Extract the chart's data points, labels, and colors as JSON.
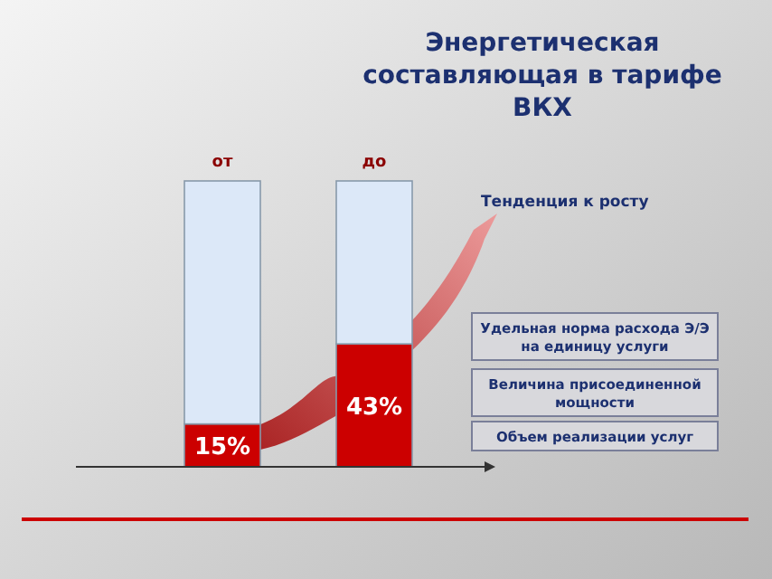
{
  "chart_data": {
    "type": "bar",
    "title": "Энергетическая составляющая в тарифе ВКХ",
    "categories": [
      "от",
      "до"
    ],
    "stacked": true,
    "tick_labels": "x",
    "series": [
      {
        "color": "#cc0000",
        "values": [
          15,
          43
        ],
        "value_labels": [
          "15%",
          "43%"
        ]
      },
      {
        "color": "#dce8f8",
        "values": [
          85,
          57
        ]
      }
    ],
    "annotations": [
      "Тенденция к росту",
      "Удельная норма расхода Э/Э на единицу услуги",
      "Величина присоединенной мощности",
      "Объем реализации услуг"
    ]
  }
}
